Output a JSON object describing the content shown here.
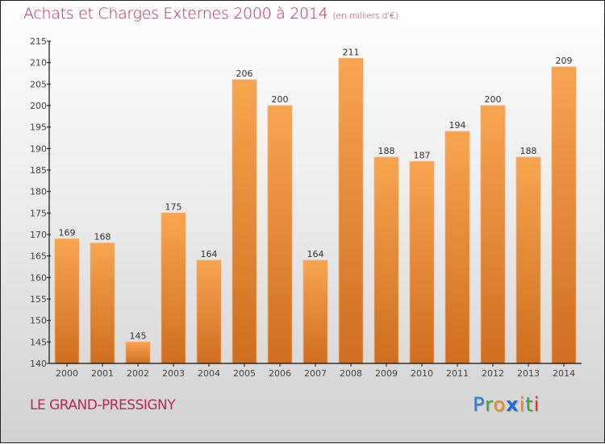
{
  "header": {
    "title": "Achats et Charges Externes 2000 à 2014",
    "unit": "(en milliers d'€)"
  },
  "footer": {
    "commune": "LE GRAND-PRESSIGNY",
    "logo": [
      {
        "char": "P",
        "color": "#2a7fd4"
      },
      {
        "char": "r",
        "color": "#3aa63a"
      },
      {
        "char": "o",
        "color": "#f08a1c"
      },
      {
        "char": "x",
        "color": "#1f6fd0"
      },
      {
        "char": "i",
        "color": "#f08a1c"
      },
      {
        "char": "t",
        "color": "#3aa63a"
      },
      {
        "char": "i",
        "color": "#e0302a"
      }
    ]
  },
  "colors": {
    "title": "#b5285a",
    "bar_top": "#f7a550",
    "bar_bottom": "#cf6e1e"
  },
  "chart_data": {
    "type": "bar",
    "title": "Achats et Charges Externes 2000 à 2014 (en milliers d'€)",
    "xlabel": "",
    "ylabel": "",
    "categories": [
      "2000",
      "2001",
      "2002",
      "2003",
      "2004",
      "2005",
      "2006",
      "2007",
      "2008",
      "2009",
      "2010",
      "2011",
      "2012",
      "2013",
      "2014"
    ],
    "values": [
      169,
      168,
      145,
      175,
      164,
      206,
      200,
      164,
      211,
      188,
      187,
      194,
      200,
      188,
      209
    ],
    "ylim": [
      140,
      215
    ],
    "yticks": [
      140,
      145,
      150,
      155,
      160,
      165,
      170,
      175,
      180,
      185,
      190,
      195,
      200,
      205,
      210,
      215
    ],
    "grid": false,
    "data_labels": true
  }
}
